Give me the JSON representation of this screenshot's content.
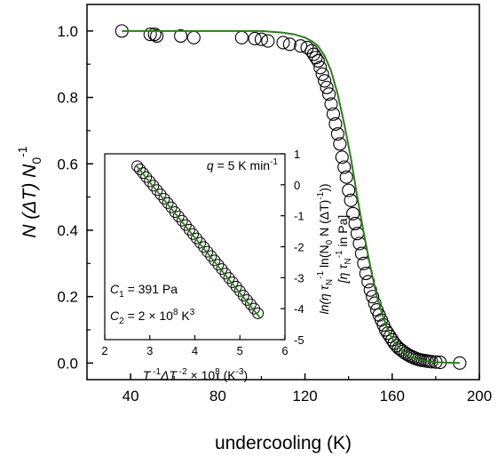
{
  "chart_data": [
    {
      "type": "scatter",
      "xlabel": "undercooling (K)",
      "ylabel": {
        "base": "N (ΔT) N",
        "sub": "0",
        "sup": "-1"
      },
      "xlim": [
        20,
        200
      ],
      "ylim": [
        -0.05,
        1.08
      ],
      "xticks": [
        40,
        80,
        120,
        160,
        200
      ],
      "yticks": [
        "0.0",
        "0.2",
        "0.4",
        "0.6",
        "0.8",
        "1.0"
      ],
      "grid": false,
      "series": [
        {
          "kind": "markers",
          "marker": "open-circle",
          "color": "#000000",
          "x": [
            36,
            49,
            51,
            52,
            63,
            69,
            91,
            97,
            100,
            103,
            110,
            113,
            118,
            121,
            123,
            124,
            125,
            126,
            127,
            128,
            129,
            130,
            131,
            132,
            133,
            134,
            135,
            136,
            137,
            138,
            139,
            140,
            141,
            142,
            143,
            144,
            145,
            146,
            147,
            148,
            149,
            150,
            151,
            152,
            153,
            154,
            155,
            156,
            157,
            158,
            159,
            160,
            161,
            162,
            163,
            164,
            165,
            166,
            167,
            168,
            169,
            170,
            171,
            172,
            173,
            174,
            175,
            176,
            177,
            178,
            180,
            182,
            191
          ],
          "y": [
            1.0,
            0.99,
            0.99,
            0.985,
            0.985,
            0.98,
            0.98,
            0.977,
            0.975,
            0.97,
            0.965,
            0.96,
            0.955,
            0.95,
            0.94,
            0.93,
            0.92,
            0.91,
            0.89,
            0.87,
            0.85,
            0.83,
            0.81,
            0.78,
            0.75,
            0.72,
            0.69,
            0.66,
            0.62,
            0.59,
            0.56,
            0.52,
            0.49,
            0.45,
            0.42,
            0.39,
            0.36,
            0.33,
            0.3,
            0.27,
            0.245,
            0.22,
            0.2,
            0.18,
            0.16,
            0.145,
            0.13,
            0.115,
            0.1,
            0.09,
            0.08,
            0.07,
            0.06,
            0.052,
            0.045,
            0.04,
            0.035,
            0.03,
            0.026,
            0.022,
            0.019,
            0.016,
            0.013,
            0.011,
            0.009,
            0.008,
            0.007,
            0.006,
            0.005,
            0.004,
            0.003,
            0.002,
            0.0
          ]
        },
        {
          "kind": "line",
          "color": "#2e7d1e",
          "x": [
            36,
            60,
            80,
            100,
            110,
            115,
            120,
            123,
            126,
            129,
            132,
            135,
            138,
            141,
            144,
            147,
            150,
            153,
            156,
            159,
            162,
            165,
            168,
            171,
            175,
            180,
            185,
            191
          ],
          "y": [
            1.0,
            1.0,
            1.0,
            1.0,
            0.995,
            0.99,
            0.98,
            0.97,
            0.955,
            0.925,
            0.88,
            0.81,
            0.72,
            0.62,
            0.5,
            0.39,
            0.29,
            0.2,
            0.135,
            0.085,
            0.055,
            0.033,
            0.02,
            0.012,
            0.006,
            0.003,
            0.0015,
            0.0
          ]
        }
      ]
    },
    {
      "type": "scatter",
      "xlabel": {
        "pre": "T",
        "sup1": " -1",
        "mid": "ΔT",
        "sup2": " -2",
        "post": " × 10",
        "sup3": "8",
        "unit": " (K",
        "sup4": "-3",
        "close": ")"
      },
      "ylabel": {
        "line1": {
          "a": "ln(η τ",
          "sub1": "N",
          "sup1": "-1",
          "b": " ln(N",
          "sub2": "0",
          "c": " N (ΔT)",
          "sup2": "-1",
          "d": "))"
        },
        "line2": {
          "a": "[η τ",
          "sub1": "N",
          "sup1": "-1",
          "b": " in Pa]"
        }
      },
      "xlim": [
        2,
        6
      ],
      "ylim": [
        -5,
        1
      ],
      "xticks": [
        "2",
        "3",
        "4",
        "5",
        "6"
      ],
      "yticks": [
        "1",
        "0",
        "-1",
        "-2",
        "-3",
        "-4",
        "-5"
      ],
      "grid": false,
      "annotations": {
        "rate": {
          "pre": "q",
          "mid": " = 5 K min",
          "sup": "-1"
        },
        "c1": {
          "pre": "C",
          "sub": "1",
          "post": " = 391 Pa"
        },
        "c2": {
          "pre": "C",
          "sub": "2",
          "post": " = 2 × 10",
          "sup": "8",
          "unit": " K",
          "sup2": "3"
        }
      },
      "series": [
        {
          "kind": "markers",
          "marker": "open-circle",
          "color": "#000000",
          "x": [
            2.72,
            2.78,
            2.85,
            2.92,
            3.0,
            3.08,
            3.16,
            3.24,
            3.32,
            3.4,
            3.48,
            3.56,
            3.64,
            3.72,
            3.8,
            3.88,
            3.96,
            4.04,
            4.12,
            4.2,
            4.28,
            4.36,
            4.44,
            4.52,
            4.6,
            4.68,
            4.76,
            4.84,
            4.92,
            5.0,
            5.08,
            5.16,
            5.24,
            5.32,
            5.4
          ],
          "y": [
            0.6,
            0.5,
            0.38,
            0.25,
            0.11,
            -0.03,
            -0.17,
            -0.31,
            -0.45,
            -0.59,
            -0.73,
            -0.88,
            -1.02,
            -1.16,
            -1.3,
            -1.45,
            -1.59,
            -1.73,
            -1.87,
            -2.01,
            -2.16,
            -2.3,
            -2.44,
            -2.58,
            -2.72,
            -2.87,
            -3.01,
            -3.15,
            -3.29,
            -3.43,
            -3.58,
            -3.72,
            -3.86,
            -4.0,
            -4.15
          ]
        },
        {
          "kind": "line",
          "color": "#2e7d1e",
          "x": [
            2.7,
            5.45
          ],
          "y": [
            0.62,
            -4.3
          ]
        }
      ]
    }
  ]
}
